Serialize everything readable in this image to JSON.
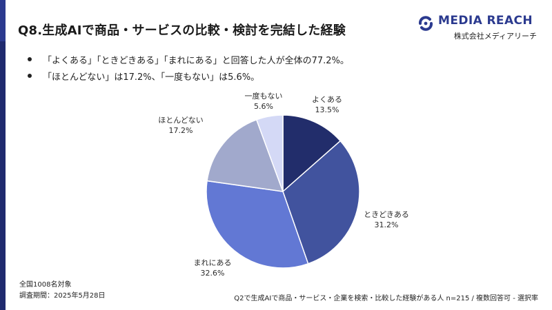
{
  "colors": {
    "accent_bar_top": "#2b3a8f",
    "accent_bar_bottom": "#1f2a6e",
    "brand": "#2b3a8f",
    "slices": [
      "#222d6b",
      "#41539e",
      "#6278d4",
      "#a1a9cc",
      "#d4d9f6"
    ]
  },
  "header": {
    "title": "Q8.生成AIで商品・サービスの比較・検討を完結した経験"
  },
  "logo": {
    "brand_name": "MEDIA REACH",
    "company_name": "株式会社メディアリーチ",
    "icon": "media-reach-logo-icon"
  },
  "summary": {
    "bullets": [
      "「よくある」「ときどきある」「まれにある」と回答した人が全体の77.2%。",
      "「ほとんどない」は17.2%、「一度もない」は5.6%。"
    ]
  },
  "chart_data": {
    "type": "pie",
    "title": "Q8.生成AIで商品・サービスの比較・検討を完結した経験",
    "start_angle": "12 o'clock",
    "direction": "clockwise",
    "categories": [
      "よくある",
      "ときどきある",
      "まれにある",
      "ほとんどない",
      "一度もない"
    ],
    "values": [
      13.5,
      31.2,
      32.6,
      17.2,
      5.6
    ],
    "value_labels": [
      "13.5%",
      "31.2%",
      "32.6%",
      "17.2%",
      "5.6%"
    ],
    "unit": "%"
  },
  "footer": {
    "scope": "全国1008名対象",
    "period": "調査期間：2025年5月28日",
    "note": "Q2で生成AIで商品・サービス・企業を検索・比較した経験がある人 n=215 / 複数回答可 - 選択率"
  }
}
